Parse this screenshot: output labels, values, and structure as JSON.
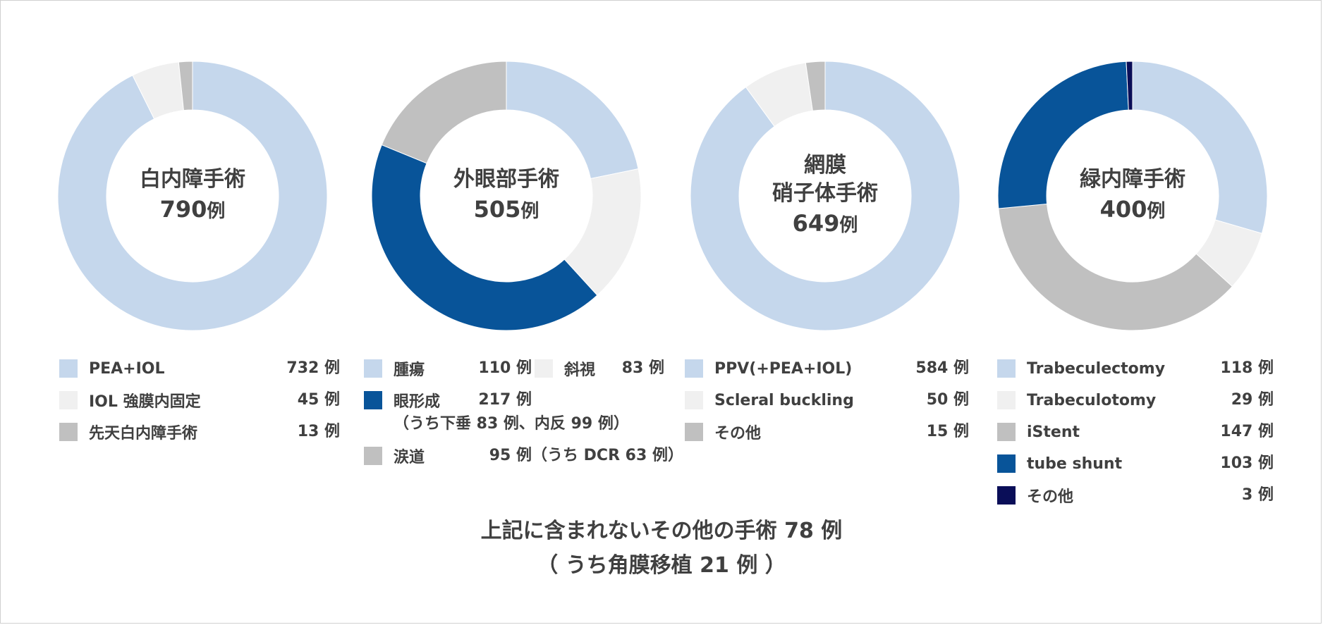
{
  "colors": {
    "light_blue": "#c5d7ec",
    "very_light_gray": "#f0f0f0",
    "gray": "#c0c0c0",
    "blue": "#085499",
    "navy": "#0a0e58"
  },
  "chart_data": [
    {
      "type": "pie",
      "donut": true,
      "title": "白内障手術",
      "total": "790",
      "total_unit": "例",
      "slices": [
        {
          "label": "PEA+IOL",
          "value": 732,
          "value_text": "732 例",
          "color": "#c5d7ec"
        },
        {
          "label": "IOL 強膜内固定",
          "value": 45,
          "value_text": "45 例",
          "color": "#f0f0f0"
        },
        {
          "label": "先天白内障手術",
          "value": 13,
          "value_text": "13 例",
          "color": "#c0c0c0"
        }
      ]
    },
    {
      "type": "pie",
      "donut": true,
      "title": "外眼部手術",
      "total": "505",
      "total_unit": "例",
      "slices": [
        {
          "label": "腫瘍",
          "value": 110,
          "value_text": "110 例",
          "color": "#c5d7ec"
        },
        {
          "label": "斜視",
          "value": 83,
          "value_text": "83 例",
          "color": "#f0f0f0"
        },
        {
          "label": "眼形成",
          "value": 217,
          "value_text": "217 例",
          "color": "#085499",
          "sub": "（うち下垂 83 例、内反 99 例）"
        },
        {
          "label": "涙道",
          "value": 95,
          "value_text": "95 例",
          "color": "#c0c0c0",
          "sub": "（うち DCR 63 例）"
        }
      ]
    },
    {
      "type": "pie",
      "donut": true,
      "title": "網膜\n硝子体手術",
      "total": "649",
      "total_unit": "例",
      "slices": [
        {
          "label": "PPV(+PEA+IOL)",
          "value": 584,
          "value_text": "584 例",
          "color": "#c5d7ec"
        },
        {
          "label": "Scleral buckling",
          "value": 50,
          "value_text": "50 例",
          "color": "#f0f0f0"
        },
        {
          "label": "その他",
          "value": 15,
          "value_text": "15 例",
          "color": "#c0c0c0"
        }
      ]
    },
    {
      "type": "pie",
      "donut": true,
      "title": "緑内障手術",
      "total": "400",
      "total_unit": "例",
      "slices": [
        {
          "label": "Trabeculectomy",
          "value": 118,
          "value_text": "118 例",
          "color": "#c5d7ec"
        },
        {
          "label": "Trabeculotomy",
          "value": 29,
          "value_text": "29 例",
          "color": "#f0f0f0"
        },
        {
          "label": "iStent",
          "value": 147,
          "value_text": "147 例",
          "color": "#c0c0c0"
        },
        {
          "label": "tube shunt",
          "value": 103,
          "value_text": "103 例",
          "color": "#085499"
        },
        {
          "label": "その他",
          "value": 3,
          "value_text": "3 例",
          "color": "#0a0e58"
        }
      ]
    }
  ],
  "footer": {
    "line1": "上記に含まれないその他の手術  78 例",
    "line2": "（ うち角膜移植 21 例 ）"
  }
}
